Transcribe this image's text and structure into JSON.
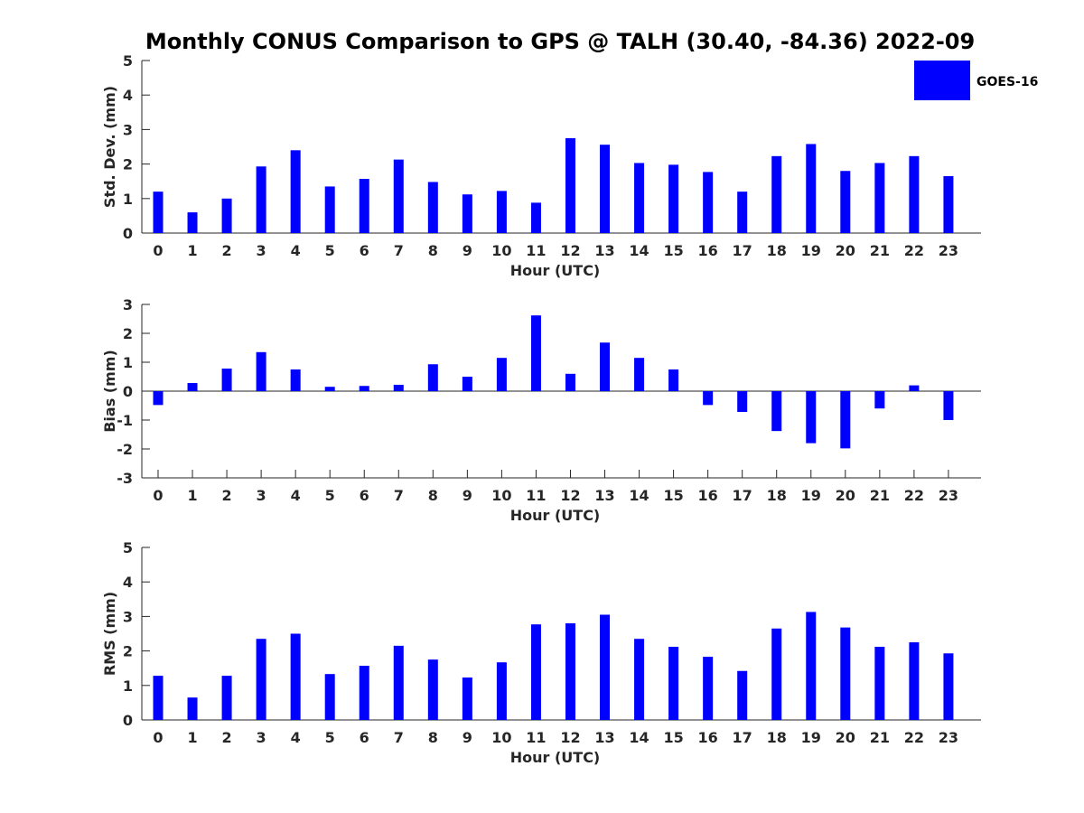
{
  "title": "Monthly CONUS Comparison to GPS @ TALH (30.40, -84.36) 2022-09",
  "legend": {
    "label": "GOES-16",
    "color": "#0000ff",
    "placement": "top-right"
  },
  "chart_data": [
    {
      "type": "bar",
      "xlabel": "Hour (UTC)",
      "ylabel": "Std. Dev. (mm)",
      "ylim": [
        0,
        5
      ],
      "yticks": [
        0,
        1,
        2,
        3,
        4,
        5
      ],
      "categories": [
        "0",
        "1",
        "2",
        "3",
        "4",
        "5",
        "6",
        "7",
        "8",
        "9",
        "10",
        "11",
        "12",
        "13",
        "14",
        "15",
        "16",
        "17",
        "18",
        "19",
        "20",
        "21",
        "22",
        "23"
      ],
      "series": [
        {
          "name": "GOES-16",
          "color": "#0000ff",
          "values": [
            1.2,
            0.6,
            1.0,
            1.93,
            2.4,
            1.35,
            1.57,
            2.13,
            1.48,
            1.12,
            1.22,
            0.88,
            2.75,
            2.56,
            2.03,
            1.98,
            1.77,
            1.2,
            2.23,
            2.58,
            1.8,
            2.03,
            2.23,
            1.65
          ]
        }
      ]
    },
    {
      "type": "bar",
      "xlabel": "Hour (UTC)",
      "ylabel": "Bias (mm)",
      "ylim": [
        -3,
        3
      ],
      "yticks": [
        -3,
        -2,
        -1,
        0,
        1,
        2,
        3
      ],
      "categories": [
        "0",
        "1",
        "2",
        "3",
        "4",
        "5",
        "6",
        "7",
        "8",
        "9",
        "10",
        "11",
        "12",
        "13",
        "14",
        "15",
        "16",
        "17",
        "18",
        "19",
        "20",
        "21",
        "22",
        "23"
      ],
      "series": [
        {
          "name": "GOES-16",
          "color": "#0000ff",
          "values": [
            -0.48,
            0.28,
            0.78,
            1.35,
            0.75,
            0.15,
            0.18,
            0.22,
            0.93,
            0.5,
            1.15,
            2.62,
            0.6,
            1.68,
            1.15,
            0.75,
            -0.48,
            -0.72,
            -1.38,
            -1.8,
            -1.98,
            -0.6,
            0.2,
            -1.0
          ]
        }
      ]
    },
    {
      "type": "bar",
      "xlabel": "Hour (UTC)",
      "ylabel": "RMS (mm)",
      "ylim": [
        0,
        5
      ],
      "yticks": [
        0,
        1,
        2,
        3,
        4,
        5
      ],
      "categories": [
        "0",
        "1",
        "2",
        "3",
        "4",
        "5",
        "6",
        "7",
        "8",
        "9",
        "10",
        "11",
        "12",
        "13",
        "14",
        "15",
        "16",
        "17",
        "18",
        "19",
        "20",
        "21",
        "22",
        "23"
      ],
      "series": [
        {
          "name": "GOES-16",
          "color": "#0000ff",
          "values": [
            1.28,
            0.65,
            1.28,
            2.35,
            2.5,
            1.33,
            1.57,
            2.15,
            1.75,
            1.23,
            1.67,
            2.77,
            2.8,
            3.05,
            2.35,
            2.12,
            1.83,
            1.42,
            2.65,
            3.13,
            2.68,
            2.12,
            2.25,
            1.93
          ]
        }
      ]
    }
  ]
}
